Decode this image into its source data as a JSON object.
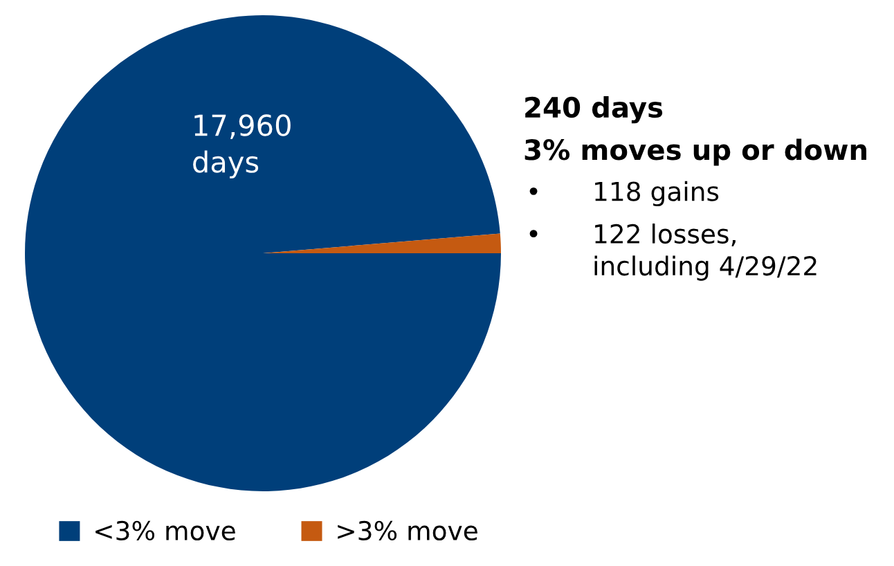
{
  "chart_data": {
    "type": "pie",
    "categories": [
      "<3% move",
      ">3% move"
    ],
    "values": [
      17960,
      240
    ],
    "colors": [
      "#003f7a",
      "#c55a11"
    ],
    "value_labels": [
      "17,960\ndays",
      null
    ],
    "annotations": [
      "240 days",
      "3% moves up or down",
      "• 118 gains",
      "• 122 losses,\nincluding 4/29/22"
    ],
    "legend": "bottom left"
  }
}
